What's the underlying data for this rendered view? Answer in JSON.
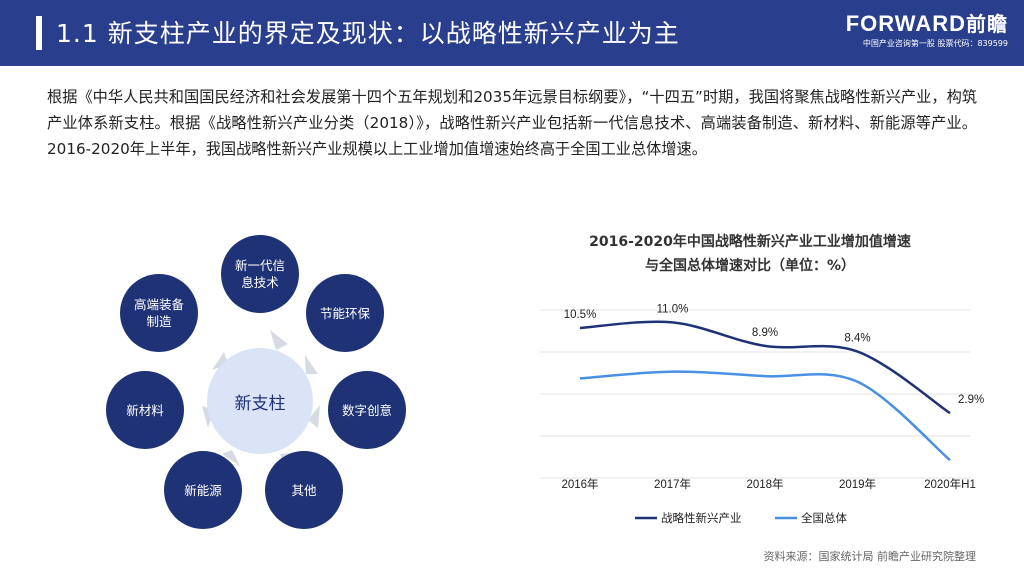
{
  "header": {
    "title": "1.1 新支柱产业的界定及现状：以战略性新兴产业为主",
    "logo_en": "FORWARD",
    "logo_cn": "前瞻",
    "logo_sub": "中国产业咨询第一股 股票代码：839599"
  },
  "intro_text": "根据《中华人民共和国国民经济和社会发展第十四个五年规划和2035年远景目标纲要》，“十四五”时期，我国将聚焦战略性新兴产业，构筑产业体系新支柱。根据《战略性新兴产业分类（2018）》，战略性新兴产业包括新一代信息技术、高端装备制造、新材料、新能源等产业。2016-2020年上半年，我国战略性新兴产业规模以上工业增加值增速始终高于全国工业总体增速。",
  "diagram": {
    "center": "新支柱",
    "nodes": [
      {
        "line1": "新一代信",
        "line2": "息技术"
      },
      {
        "line1": "节能环保",
        "line2": ""
      },
      {
        "line1": "数字创意",
        "line2": ""
      },
      {
        "line1": "其他",
        "line2": ""
      },
      {
        "line1": "新能源",
        "line2": ""
      },
      {
        "line1": "新材料",
        "line2": ""
      },
      {
        "line1": "高端装备",
        "line2": "制造"
      }
    ],
    "colors": {
      "node": "#1f3276",
      "center": "#dbe4f7",
      "arrow": "#d5dae3"
    }
  },
  "chart_title_line1": "2016-2020年中国战略性新兴产业工业增加值增速",
  "chart_title_line2": "与全国总体增速对比（单位：%）",
  "chart_data": {
    "type": "line",
    "categories": [
      "2016年",
      "2017年",
      "2018年",
      "2019年",
      "2020年H1"
    ],
    "series": [
      {
        "name": "战略性新兴产业",
        "values": [
          10.5,
          11.0,
          8.9,
          8.4,
          2.9
        ],
        "color": "#1f3276",
        "labels": [
          "10.5%",
          "11.0%",
          "8.9%",
          "8.4%",
          "2.9%"
        ]
      },
      {
        "name": "全国总体",
        "values": [
          6.0,
          6.6,
          6.2,
          5.7,
          -1.3
        ],
        "color": "#4a90e2"
      }
    ],
    "ylim": [
      -2,
      13
    ],
    "grid": true,
    "legend": "bottom"
  },
  "source": "资料来源：国家统计局 前瞻产业研究院整理"
}
